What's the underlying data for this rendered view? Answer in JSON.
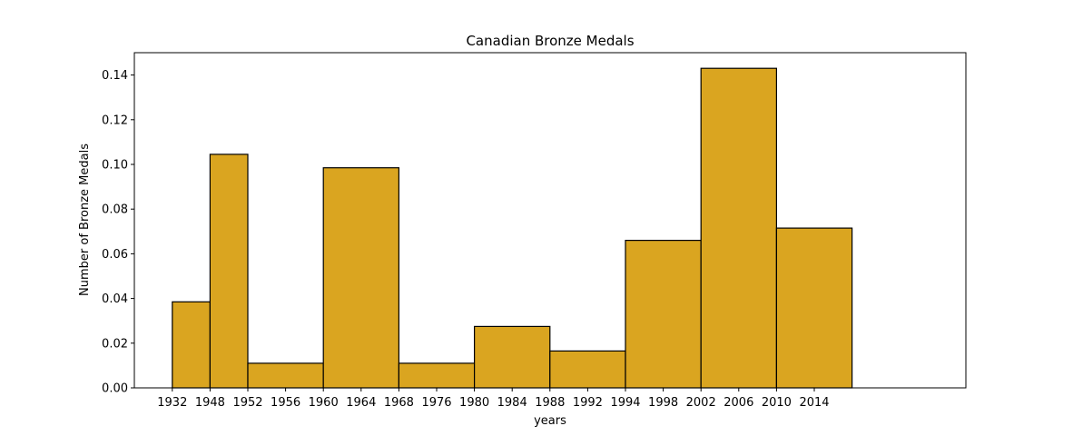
{
  "chart_data": {
    "type": "bar",
    "title": "Canadian Bronze Medals",
    "xlabel": "years",
    "ylabel": "Number of Bronze Medals",
    "x_ticks": [
      "1932",
      "1948",
      "1952",
      "1956",
      "1960",
      "1964",
      "1968",
      "1976",
      "1980",
      "1984",
      "1988",
      "1992",
      "1994",
      "1998",
      "2002",
      "2006",
      "2010",
      "2014"
    ],
    "bin_edges_tick_index": [
      1,
      2,
      4,
      6,
      8,
      10,
      12,
      14,
      16,
      18,
      20
    ],
    "values": [
      0.0385,
      0.1045,
      0.011,
      0.0985,
      0.011,
      0.0275,
      0.0165,
      0.066,
      0.143,
      0.0715
    ],
    "ylim": [
      0,
      0.15
    ],
    "y_ticks": [
      0.0,
      0.02,
      0.04,
      0.06,
      0.08,
      0.1,
      0.12,
      0.14
    ],
    "y_tick_labels": [
      "0.00",
      "0.02",
      "0.04",
      "0.06",
      "0.08",
      "0.10",
      "0.12",
      "0.14"
    ],
    "bar_color": "#daa520",
    "grid": false,
    "legend": "none"
  }
}
